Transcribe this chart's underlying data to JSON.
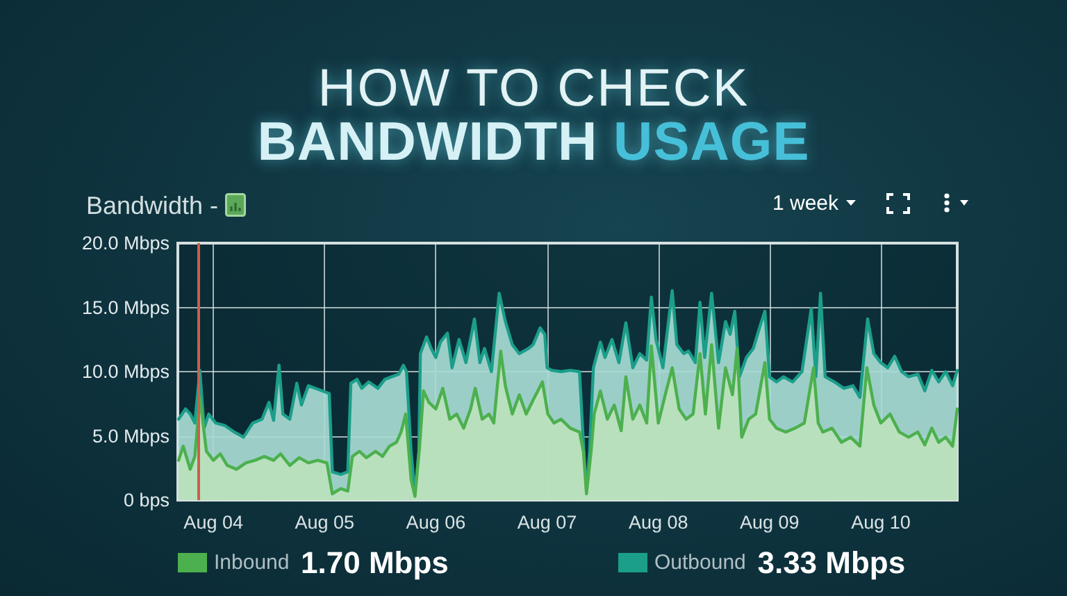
{
  "chart_data": {
    "type": "area",
    "title": "HOW TO CHECK",
    "subtitle": "BANDWIDTH USAGE",
    "ylabel": "Bandwidth -",
    "annotations": [
      "1 week",
      "1.70 Mbps",
      "3.33 Mbps"
    ],
    "xlim": [
      "--08-03T16:20",
      "--08-10T16:30"
    ],
    "xticks": [
      {
        "value": "--08-04",
        "label": "Aug 04"
      },
      {
        "value": "--08-05",
        "label": "Aug 05"
      },
      {
        "value": "--08-06",
        "label": "Aug 06"
      },
      {
        "value": "--08-07",
        "label": "Aug 07"
      },
      {
        "value": "--08-08",
        "label": "Aug 08"
      },
      {
        "value": "--08-09",
        "label": "Aug 09"
      },
      {
        "value": "--08-10",
        "label": "Aug 10"
      }
    ],
    "ylim": [
      0,
      20
    ],
    "yticks": [
      {
        "value": 0,
        "label": "0 bps"
      },
      {
        "value": 5,
        "label": "5.0 Mbps"
      },
      {
        "value": 10,
        "label": "10.0 Mbps"
      },
      {
        "value": 15,
        "label": "15.0 Mbps"
      },
      {
        "value": 20,
        "label": "20.0 Mbps"
      }
    ],
    "grid": true,
    "legend": "bottom",
    "ref_lines": [
      {
        "axis": "x",
        "value": "--08-03T20:40",
        "color": "#c8604c"
      }
    ],
    "series": [
      {
        "name": "Inbound",
        "color": "#4cb04e",
        "x": [
          "--08-03T16:30",
          "--08-03T17:30",
          "--08-03T19:00",
          "--08-03T20:00",
          "--08-03T21:05",
          "--08-03T22:30",
          "--08-04T00:00",
          "--08-04T01:30",
          "--08-04T03:00",
          "--08-04T05:00",
          "--08-04T07:00",
          "--08-04T09:00",
          "--08-04T11:00",
          "--08-04T13:00",
          "--08-04T14:30",
          "--08-04T16:30",
          "--08-04T18:30",
          "--08-04T20:30",
          "--08-04T22:30",
          "--08-05T00:30",
          "--08-05T01:40",
          "--08-05T03:30",
          "--08-05T05:00",
          "--08-05T06:00",
          "--08-05T07:30",
          "--08-05T09:00",
          "--08-05T11:00",
          "--08-05T12:30",
          "--08-05T14:00",
          "--08-05T15:30",
          "--08-05T16:30",
          "--08-05T17:30",
          "--08-05T18:40",
          "--08-05T19:30",
          "--08-05T20:30",
          "--08-05T21:20",
          "--08-05T22:30",
          "--08-06T00:00",
          "--08-06T01:30",
          "--08-06T03:00",
          "--08-06T04:30",
          "--08-06T06:00",
          "--08-06T07:30",
          "--08-06T08:30",
          "--08-06T10:00",
          "--08-06T11:30",
          "--08-06T12:30",
          "--08-06T14:00",
          "--08-06T15:00",
          "--08-06T16:30",
          "--08-06T18:00",
          "--08-06T19:30",
          "--08-06T21:00",
          "--08-06T23:00",
          "--08-07T00:10",
          "--08-07T01:30",
          "--08-07T03:00",
          "--08-07T05:00",
          "--08-07T07:00",
          "--08-07T07:50",
          "--08-07T08:30",
          "--08-07T09:30",
          "--08-07T10:10",
          "--08-07T11:30",
          "--08-07T13:00",
          "--08-07T14:30",
          "--08-07T16:00",
          "--08-07T17:00",
          "--08-07T18:30",
          "--08-07T20:00",
          "--08-07T21:30",
          "--08-07T22:30",
          "--08-08T00:00",
          "--08-08T01:30",
          "--08-08T03:00",
          "--08-08T04:30",
          "--08-08T06:00",
          "--08-08T07:30",
          "--08-08T09:00",
          "--08-08T10:10",
          "--08-08T11:30",
          "--08-08T13:00",
          "--08-08T14:30",
          "--08-08T16:00",
          "--08-08T17:00",
          "--08-08T18:00",
          "--08-08T19:30",
          "--08-08T21:00",
          "--08-08T23:00",
          "--08-09T00:00",
          "--08-09T01:30",
          "--08-09T03:30",
          "--08-09T05:30",
          "--08-09T07:30",
          "--08-09T09:30",
          "--08-09T10:30",
          "--08-09T11:30",
          "--08-09T13:30",
          "--08-09T15:30",
          "--08-09T17:30",
          "--08-09T19:30",
          "--08-09T21:00",
          "--08-09T22:30",
          "--08-10T00:00",
          "--08-10T02:00",
          "--08-10T04:00",
          "--08-10T06:00",
          "--08-10T08:00",
          "--08-10T09:30",
          "--08-10T11:00",
          "--08-10T12:30",
          "--08-10T14:00",
          "--08-10T15:30",
          "--08-10T16:30"
        ],
        "values": [
          3.1,
          4.2,
          2.4,
          3.4,
          8.0,
          3.8,
          3.1,
          3.6,
          2.7,
          2.4,
          2.9,
          3.1,
          3.4,
          3.1,
          3.6,
          2.7,
          3.3,
          2.9,
          3.1,
          2.9,
          0.5,
          0.9,
          0.7,
          3.4,
          3.8,
          3.3,
          3.8,
          3.4,
          4.2,
          4.5,
          5.3,
          6.7,
          1.6,
          0.3,
          4.2,
          8.5,
          7.6,
          7.1,
          8.7,
          6.3,
          6.7,
          5.6,
          7.1,
          8.7,
          6.3,
          6.7,
          6.0,
          11.6,
          8.9,
          6.7,
          8.2,
          6.7,
          7.8,
          9.2,
          6.7,
          6.0,
          6.3,
          5.6,
          5.3,
          3.8,
          0.5,
          3.8,
          6.7,
          8.5,
          6.3,
          7.4,
          5.4,
          9.6,
          6.3,
          7.4,
          6.0,
          12.0,
          6.0,
          8.2,
          10.3,
          7.1,
          6.3,
          6.7,
          11.4,
          6.7,
          12.1,
          5.6,
          10.3,
          8.2,
          11.8,
          4.9,
          6.3,
          6.7,
          10.7,
          6.3,
          5.6,
          5.3,
          5.6,
          6.0,
          10.3,
          6.0,
          5.3,
          5.6,
          4.5,
          4.9,
          4.2,
          10.3,
          7.4,
          6.0,
          6.7,
          5.3,
          4.9,
          5.3,
          4.3,
          5.6,
          4.5,
          4.9,
          4.2,
          7.1
        ]
      },
      {
        "name": "Outbound",
        "color": "#1b9e8a",
        "x": [
          "--08-03T16:30",
          "--08-03T18:00",
          "--08-03T19:00",
          "--08-03T20:00",
          "--08-03T21:05",
          "--08-03T22:00",
          "--08-03T23:00",
          "--08-04T00:30",
          "--08-04T02:30",
          "--08-04T04:30",
          "--08-04T06:30",
          "--08-04T08:30",
          "--08-04T10:30",
          "--08-04T12:00",
          "--08-04T13:00",
          "--08-04T14:10",
          "--08-04T15:00",
          "--08-04T16:30",
          "--08-04T18:00",
          "--08-04T19:00",
          "--08-04T20:30",
          "--08-04T22:00",
          "--08-04T23:30",
          "--08-05T01:00",
          "--08-05T01:40",
          "--08-05T03:30",
          "--08-05T05:00",
          "--08-05T05:40",
          "--08-05T07:00",
          "--08-05T08:00",
          "--08-05T09:30",
          "--08-05T11:30",
          "--08-05T13:00",
          "--08-05T14:30",
          "--08-05T16:00",
          "--08-05T17:00",
          "--08-05T17:40",
          "--08-05T18:40",
          "--08-05T19:30",
          "--08-05T20:20",
          "--08-05T20:40",
          "--08-05T22:00",
          "--08-05T23:00",
          "--08-06T00:00",
          "--08-06T01:00",
          "--08-06T02:30",
          "--08-06T03:30",
          "--08-06T05:00",
          "--08-06T06:30",
          "--08-06T08:20",
          "--08-06T09:30",
          "--08-06T10:30",
          "--08-06T12:00",
          "--08-06T13:40",
          "--08-06T15:00",
          "--08-06T16:30",
          "--08-06T18:00",
          "--08-06T20:00",
          "--08-06T21:00",
          "--08-06T22:30",
          "--08-06T23:30",
          "--08-07T00:00",
          "--08-07T01:00",
          "--08-07T03:00",
          "--08-07T05:00",
          "--08-07T07:00",
          "--08-07T07:50",
          "--08-07T08:30",
          "--08-07T09:10",
          "--08-07T10:00",
          "--08-07T11:30",
          "--08-07T12:30",
          "--08-07T14:00",
          "--08-07T15:30",
          "--08-07T17:00",
          "--08-07T18:30",
          "--08-07T20:00",
          "--08-07T21:30",
          "--08-07T22:30",
          "--08-07T23:30",
          "--08-08T01:00",
          "--08-08T03:00",
          "--08-08T04:00",
          "--08-08T05:30",
          "--08-08T06:30",
          "--08-08T08:00",
          "--08-08T09:00",
          "--08-08T10:00",
          "--08-08T11:30",
          "--08-08T13:00",
          "--08-08T14:30",
          "--08-08T15:30",
          "--08-08T16:30",
          "--08-08T17:30",
          "--08-08T19:00",
          "--08-08T20:30",
          "--08-08T22:00",
          "--08-08T23:00",
          "--08-09T00:00",
          "--08-09T01:30",
          "--08-09T03:00",
          "--08-09T05:00",
          "--08-09T07:00",
          "--08-09T09:00",
          "--08-09T10:00",
          "--08-09T11:00",
          "--08-09T12:00",
          "--08-09T14:00",
          "--08-09T16:00",
          "--08-09T18:00",
          "--08-09T19:30",
          "--08-09T21:10",
          "--08-09T22:30",
          "--08-10T00:00",
          "--08-10T01:30",
          "--08-10T03:00",
          "--08-10T04:30",
          "--08-10T06:00",
          "--08-10T08:00",
          "--08-10T09:30",
          "--08-10T11:00",
          "--08-10T12:30",
          "--08-10T14:00",
          "--08-10T15:30",
          "--08-10T16:30"
        ],
        "values": [
          6.3,
          7.1,
          6.7,
          6.0,
          10.1,
          5.6,
          6.7,
          6.0,
          5.8,
          5.3,
          4.9,
          6.0,
          6.3,
          7.6,
          6.2,
          10.5,
          6.7,
          6.3,
          9.1,
          7.4,
          8.9,
          8.7,
          8.5,
          8.3,
          2.2,
          2.0,
          2.2,
          9.1,
          9.4,
          8.7,
          9.2,
          8.7,
          9.4,
          9.6,
          9.8,
          10.5,
          10.0,
          3.8,
          0.4,
          3.8,
          11.4,
          12.7,
          11.8,
          11.1,
          12.3,
          13.0,
          10.3,
          12.5,
          10.7,
          14.1,
          10.7,
          11.8,
          10.0,
          16.1,
          13.9,
          12.1,
          11.4,
          11.8,
          12.1,
          13.4,
          12.9,
          10.3,
          10.1,
          10.0,
          10.1,
          10.0,
          4.5,
          0.5,
          3.8,
          10.3,
          12.3,
          11.1,
          12.5,
          10.7,
          13.8,
          10.3,
          11.4,
          10.9,
          15.8,
          12.5,
          10.3,
          16.3,
          12.1,
          11.4,
          11.6,
          10.7,
          15.4,
          11.1,
          16.1,
          10.7,
          13.9,
          12.9,
          14.7,
          9.6,
          11.1,
          11.8,
          13.6,
          14.7,
          9.6,
          9.2,
          9.6,
          9.2,
          10.0,
          14.9,
          9.6,
          16.1,
          9.6,
          9.2,
          8.7,
          8.9,
          8.0,
          14.1,
          11.4,
          10.7,
          10.3,
          11.2,
          10.0,
          9.6,
          9.8,
          8.5,
          10.1,
          9.2,
          10.0,
          8.9,
          10.1
        ]
      }
    ]
  }
}
